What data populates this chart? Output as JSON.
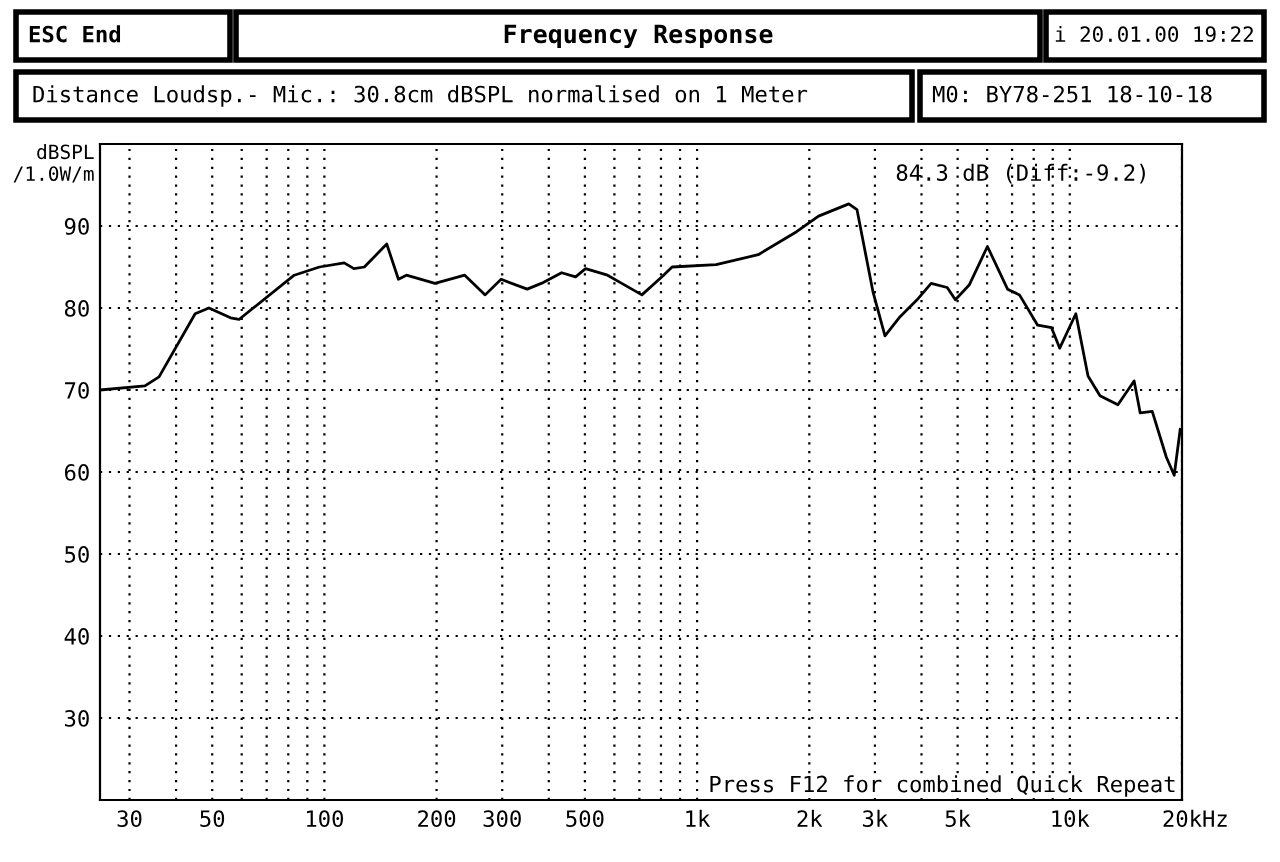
{
  "chart_data": {
    "type": "line",
    "title": "Frequency Response",
    "subtitle": "Distance Loudsp.- Mic.: 30.8cm dBSPL normalised on 1 Meter",
    "ylabel": "dBSPL\n/1.0W/m",
    "annotations": [
      "ESC End",
      "i 20.01.00 19:22",
      "M0: BY78-251 18-10-18",
      "84.3 dB (Diff:-9.2)",
      "Press F12 for combined Quick Repeat"
    ],
    "x": [
      25,
      33,
      36,
      45,
      49,
      56,
      59,
      83,
      97,
      113,
      120,
      128,
      147,
      158,
      166,
      198,
      238,
      270,
      298,
      350,
      382,
      433,
      472,
      502,
      575,
      628,
      711,
      805,
      857,
      1125,
      1459,
      1849,
      2118,
      2553,
      2685,
      2963,
      3192,
      3483,
      3891,
      4246,
      4688,
      4932,
      5370,
      6012,
      6808,
      7328,
      8199,
      8933,
      9397,
      10380,
      11190,
      12050,
      13460,
      14880,
      15450,
      16640,
      18160,
      19060,
      19780
    ],
    "series": [
      {
        "color": "#000000",
        "values": [
          70,
          70.5,
          71.6,
          79.3,
          80,
          78.8,
          78.6,
          84,
          85,
          85.5,
          84.8,
          85,
          87.8,
          83.5,
          84,
          83,
          84,
          81.6,
          83.5,
          82.3,
          83,
          84.3,
          83.8,
          84.8,
          84,
          83,
          81.6,
          83.8,
          85,
          85.3,
          86.5,
          89.3,
          91.2,
          92.7,
          92,
          82,
          76.6,
          78.8,
          81,
          83,
          82.5,
          81,
          82.8,
          87.5,
          82.3,
          81.6,
          77.9,
          77.6,
          75.1,
          79.3,
          71.7,
          69.3,
          68.2,
          71.1,
          67.2,
          67.4,
          61.8,
          59.6,
          65.2
        ]
      }
    ],
    "log": "x",
    "xlim": [
      25,
      20000
    ],
    "xticks": [
      30,
      {
        "value": 40,
        "label": null
      },
      50,
      {
        "value": 60,
        "label": null
      },
      {
        "value": 70,
        "label": null
      },
      {
        "value": 80,
        "label": null
      },
      {
        "value": 90,
        "label": null
      },
      100,
      200,
      300,
      {
        "value": 400,
        "label": null
      },
      500,
      {
        "value": 600,
        "label": null
      },
      {
        "value": 700,
        "label": null
      },
      {
        "value": 800,
        "label": null
      },
      {
        "value": 900,
        "label": null
      },
      {
        "value": 1000,
        "label": "1k"
      },
      {
        "value": 2000,
        "label": "2k"
      },
      {
        "value": 3000,
        "label": "3k"
      },
      {
        "value": 4000,
        "label": null
      },
      {
        "value": 5000,
        "label": "5k"
      },
      {
        "value": 6000,
        "label": null
      },
      {
        "value": 7000,
        "label": null
      },
      {
        "value": 8000,
        "label": null
      },
      {
        "value": 9000,
        "label": null
      },
      {
        "value": 10000,
        "label": "10k"
      },
      {
        "value": 20000,
        "label": "20k"
      }
    ],
    "xlabel": "Hz",
    "ylim": [
      20,
      100
    ],
    "yticks": [
      30,
      40,
      50,
      60,
      70,
      80,
      90
    ],
    "grid": true,
    "marker": "none",
    "line_style": "solid"
  }
}
